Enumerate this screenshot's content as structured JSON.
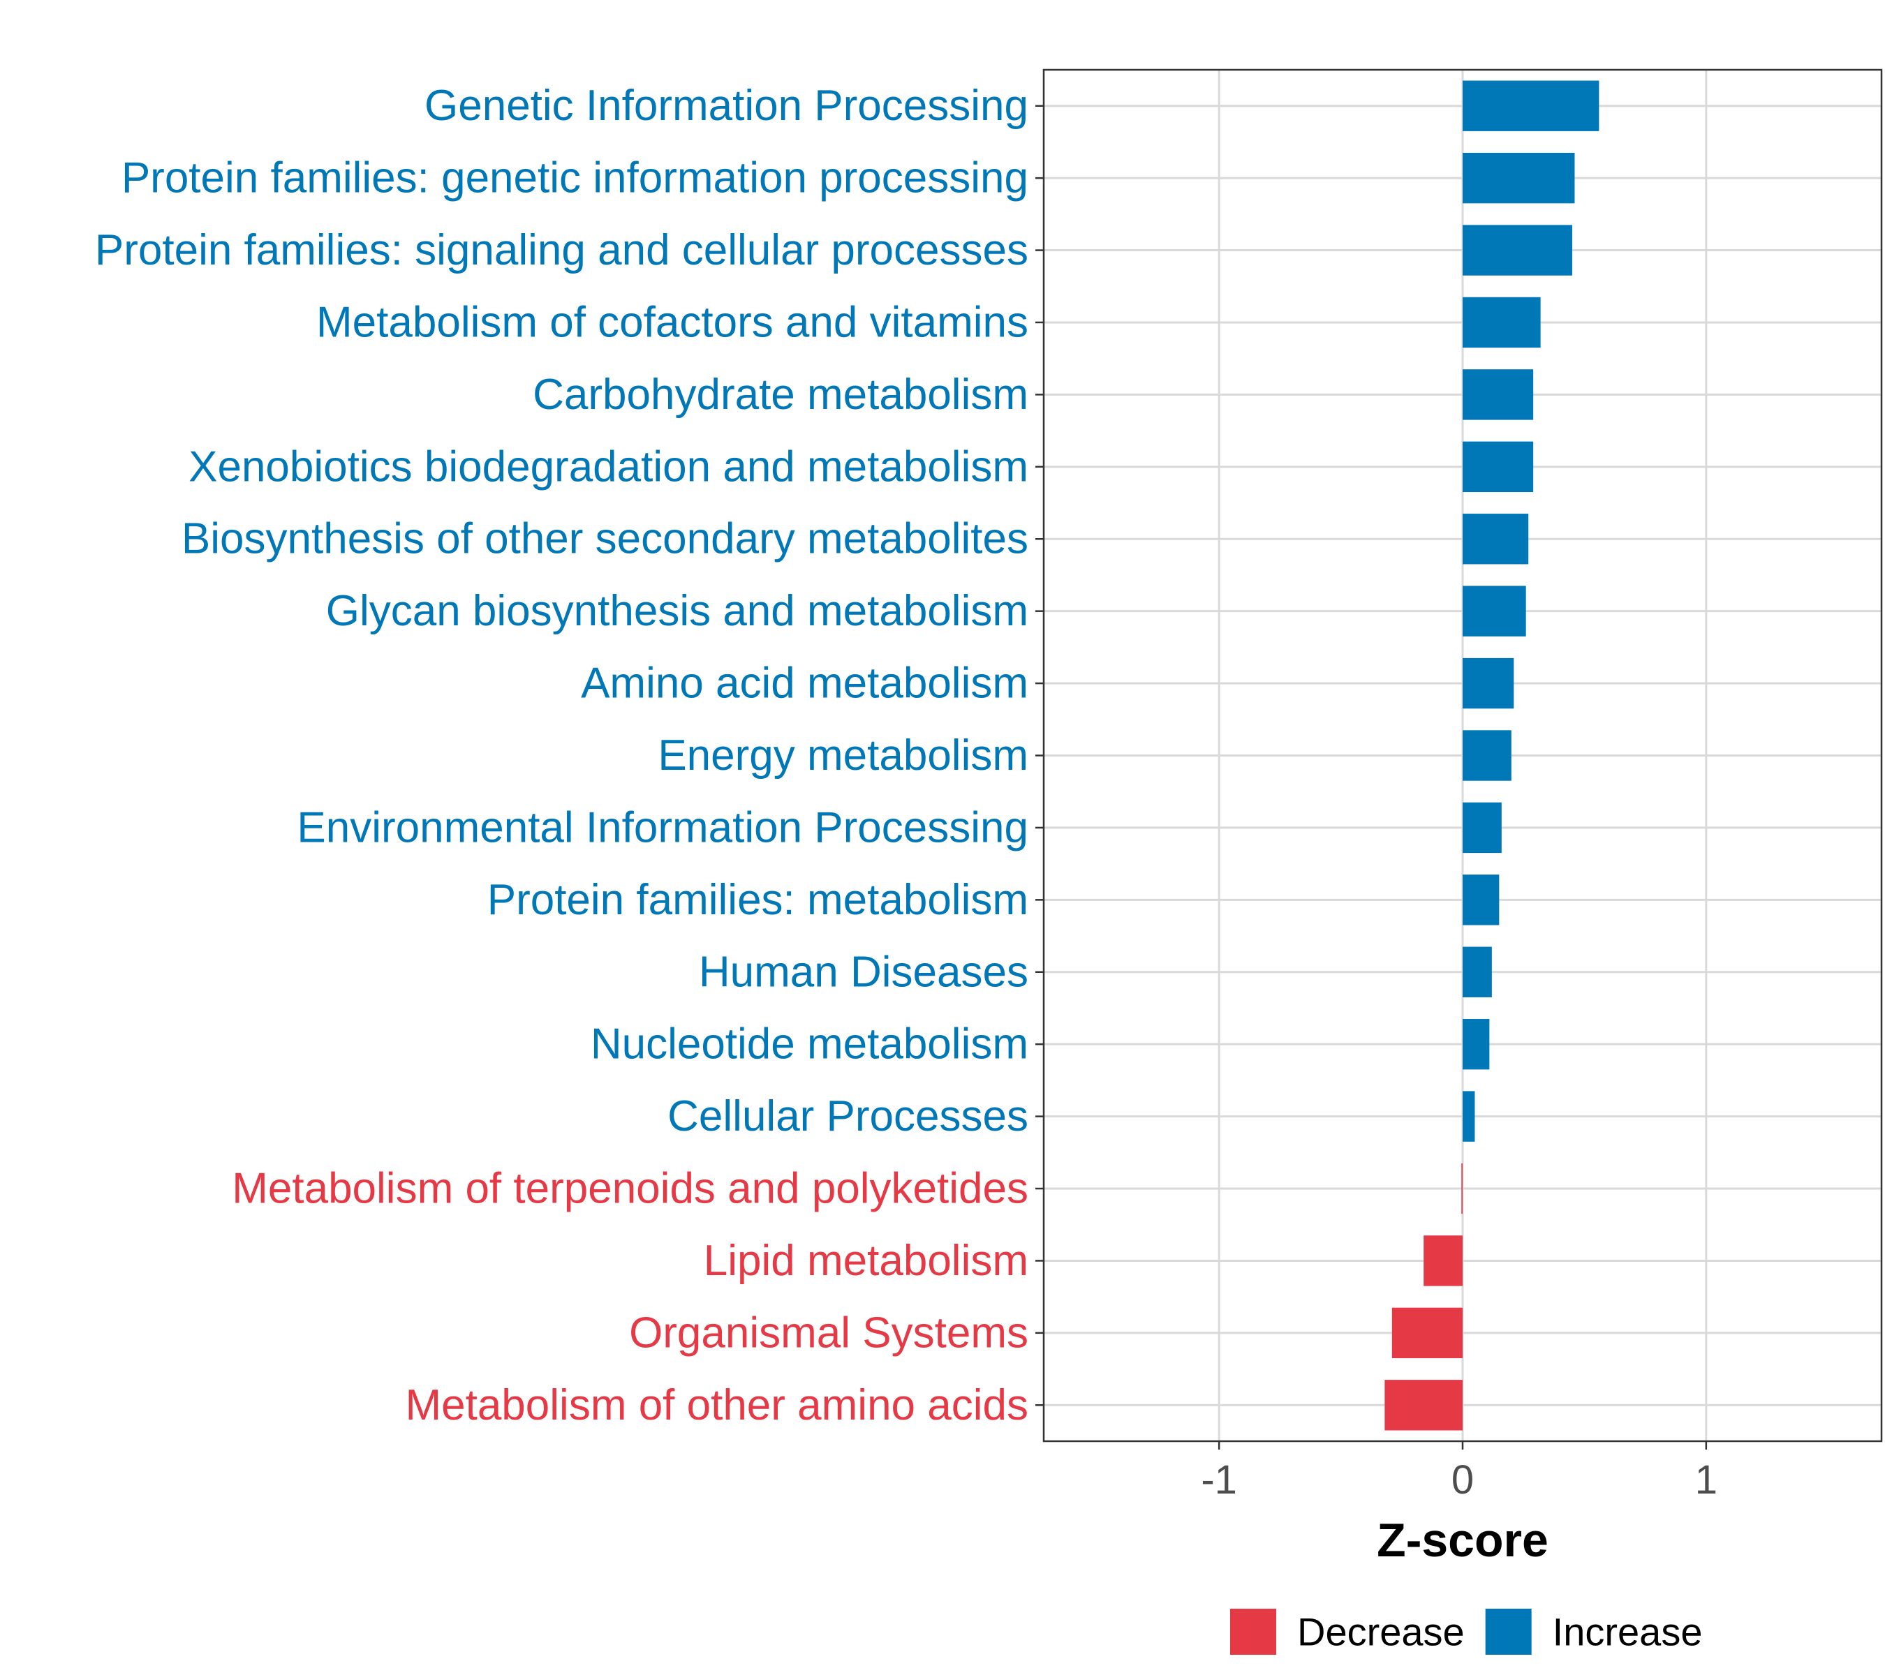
{
  "chart_data": {
    "type": "bar",
    "orientation": "horizontal",
    "categories": [
      "Genetic Information Processing",
      "Protein families: genetic information processing",
      "Protein families: signaling and cellular processes",
      "Metabolism of cofactors and vitamins",
      "Carbohydrate metabolism",
      "Xenobiotics biodegradation and metabolism",
      "Biosynthesis of other secondary metabolites",
      "Glycan biosynthesis and metabolism",
      "Amino acid metabolism",
      "Energy metabolism",
      "Environmental Information Processing",
      "Protein families: metabolism",
      "Human Diseases",
      "Nucleotide metabolism",
      "Cellular Processes",
      "Metabolism of terpenoids and polyketides",
      "Lipid metabolism",
      "Organismal Systems",
      "Metabolism of other amino acids"
    ],
    "values": [
      0.56,
      0.46,
      0.45,
      0.32,
      0.29,
      0.29,
      0.27,
      0.26,
      0.21,
      0.2,
      0.16,
      0.15,
      0.12,
      0.11,
      0.05,
      -0.005,
      -0.16,
      -0.29,
      -0.32
    ],
    "groups": [
      "Increase",
      "Increase",
      "Increase",
      "Increase",
      "Increase",
      "Increase",
      "Increase",
      "Increase",
      "Increase",
      "Increase",
      "Increase",
      "Increase",
      "Increase",
      "Increase",
      "Increase",
      "Decrease",
      "Decrease",
      "Decrease",
      "Decrease"
    ],
    "xlabel": "Z-score",
    "ylabel": "",
    "xlim": [
      -1.72,
      1.72
    ],
    "xticks": [
      -1,
      0,
      1
    ],
    "xtick_labels": [
      "-1",
      "0",
      "1"
    ],
    "grid": true,
    "legend": {
      "position": "bottom",
      "entries": [
        {
          "label": "Decrease",
          "color": "#E63946"
        },
        {
          "label": "Increase",
          "color": "#0077B6"
        }
      ]
    },
    "colors": {
      "Decrease": "#E63946",
      "Increase": "#0077B6"
    }
  }
}
